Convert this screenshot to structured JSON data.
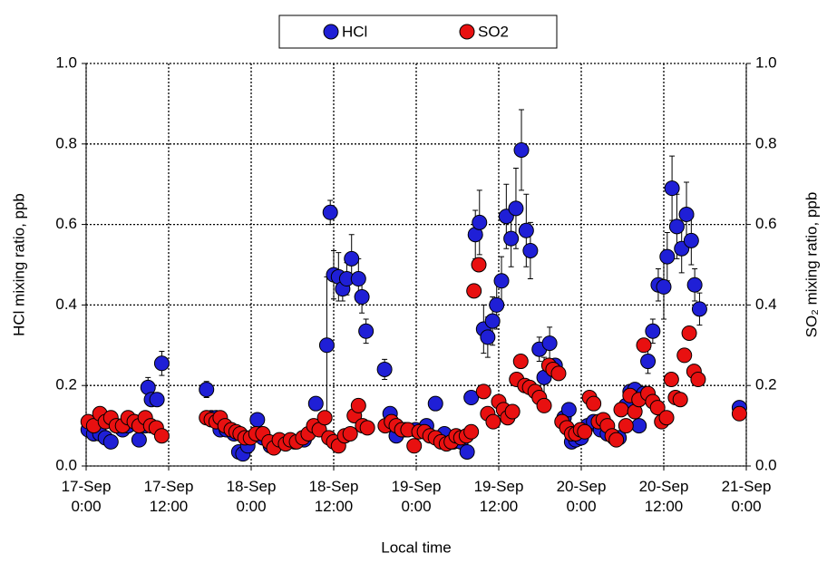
{
  "chart_data": {
    "type": "scatter",
    "xlabel": "Local time",
    "ylabel": "HCl mixing ratio,  ppb",
    "y2label": "SO₂ mixing ratio,  ppb",
    "xlim": [
      0,
      96
    ],
    "xticks": [
      {
        "value": 0,
        "label": "17-Sep\n0:00"
      },
      {
        "value": 12,
        "label": "17-Sep\n12:00"
      },
      {
        "value": 24,
        "label": "18-Sep\n0:00"
      },
      {
        "value": 36,
        "label": "18-Sep\n12:00"
      },
      {
        "value": 48,
        "label": "19-Sep\n0:00"
      },
      {
        "value": 60,
        "label": "19-Sep\n12:00"
      },
      {
        "value": 72,
        "label": "20-Sep\n0:00"
      },
      {
        "value": 84,
        "label": "20-Sep\n12:00"
      },
      {
        "value": 96,
        "label": "21-Sep\n0:00"
      }
    ],
    "ylim": [
      0,
      1
    ],
    "yticks": [
      {
        "value": 0,
        "label": "0.0"
      },
      {
        "value": 0.2,
        "label": "0.2"
      },
      {
        "value": 0.4,
        "label": "0.4"
      },
      {
        "value": 0.6,
        "label": "0.6"
      },
      {
        "value": 0.8,
        "label": "0.8"
      },
      {
        "value": 1,
        "label": "1.0"
      }
    ],
    "y2lim": [
      0,
      1
    ],
    "y2ticks": [
      {
        "value": 0,
        "label": "0.0"
      },
      {
        "value": 0.2,
        "label": "0.2"
      },
      {
        "value": 0.4,
        "label": "0.4"
      },
      {
        "value": 0.6,
        "label": "0.6"
      },
      {
        "value": 0.8,
        "label": "0.8"
      },
      {
        "value": 1,
        "label": "1.0"
      }
    ],
    "grid": true,
    "legend": "top",
    "series": [
      {
        "name": "HCl",
        "color": "#1f1fd6",
        "x": [
          0.3,
          1.1,
          2.0,
          2.8,
          3.6,
          4.4,
          5.3,
          6.1,
          7.0,
          7.7,
          8.6,
          9.0,
          9.5,
          10.3,
          11.0,
          17.5,
          18.2,
          18.9,
          19.5,
          20.4,
          21.5,
          22.2,
          22.8,
          23.5,
          24.9,
          25.7,
          26.8,
          27.7,
          29.0,
          30.3,
          31.7,
          33.4,
          35.0,
          35.5,
          36.0,
          36.7,
          37.3,
          37.9,
          38.6,
          39.6,
          40.1,
          40.7,
          43.4,
          44.2,
          45.1,
          46.4,
          47.9,
          49.5,
          50.8,
          52.1,
          53.4,
          54.5,
          55.4,
          56.0,
          56.6,
          57.2,
          57.8,
          58.4,
          59.1,
          59.7,
          60.4,
          61.1,
          61.8,
          62.5,
          63.3,
          64.0,
          64.6,
          65.9,
          66.6,
          67.4,
          68.2,
          69.5,
          70.2,
          70.6,
          71.2,
          72.0,
          72.9,
          73.8,
          74.8,
          75.8,
          76.8,
          77.5,
          78.5,
          79.1,
          79.8,
          80.4,
          81.1,
          81.7,
          82.4,
          83.2,
          84.0,
          84.5,
          85.2,
          85.9,
          86.6,
          87.3,
          88.0,
          88.5,
          89.2,
          95.0
        ],
        "values": [
          0.09,
          0.08,
          0.08,
          0.07,
          0.06,
          0.1,
          0.09,
          0.1,
          0.11,
          0.065,
          0.1,
          0.195,
          0.165,
          0.165,
          0.255,
          0.19,
          0.12,
          0.12,
          0.09,
          0.09,
          0.08,
          0.035,
          0.03,
          0.05,
          0.115,
          0.07,
          0.05,
          0.06,
          0.06,
          0.06,
          0.065,
          0.155,
          0.3,
          0.63,
          0.475,
          0.47,
          0.44,
          0.465,
          0.515,
          0.465,
          0.42,
          0.335,
          0.24,
          0.13,
          0.075,
          0.09,
          0.09,
          0.1,
          0.155,
          0.08,
          0.06,
          0.06,
          0.035,
          0.17,
          0.575,
          0.605,
          0.34,
          0.32,
          0.36,
          0.4,
          0.46,
          0.62,
          0.565,
          0.64,
          0.785,
          0.585,
          0.535,
          0.29,
          0.22,
          0.305,
          0.25,
          0.12,
          0.14,
          0.06,
          0.065,
          0.07,
          0.1,
          0.11,
          0.09,
          0.08,
          0.07,
          0.07,
          0.15,
          0.185,
          0.19,
          0.1,
          0.18,
          0.26,
          0.335,
          0.45,
          0.445,
          0.52,
          0.69,
          0.595,
          0.54,
          0.625,
          0.56,
          0.45,
          0.39,
          0.145
        ],
        "errors": [
          0.015,
          0.015,
          0.015,
          0.015,
          0.015,
          0.015,
          0.015,
          0.015,
          0.015,
          0.015,
          0.015,
          0.025,
          0.015,
          0.015,
          0.03,
          0.02,
          0.015,
          0.015,
          0.015,
          0.015,
          0.015,
          0.015,
          0.015,
          0.015,
          0.015,
          0.015,
          0.015,
          0.015,
          0.015,
          0.015,
          0.015,
          0.015,
          0.17,
          0.03,
          0.06,
          0.06,
          0.03,
          0.04,
          0.06,
          0.05,
          0.04,
          0.03,
          0.025,
          0.015,
          0.015,
          0.015,
          0.015,
          0.015,
          0.015,
          0.015,
          0.015,
          0.015,
          0.015,
          0.015,
          0.06,
          0.08,
          0.06,
          0.05,
          0.06,
          0.06,
          0.06,
          0.08,
          0.07,
          0.1,
          0.1,
          0.09,
          0.07,
          0.03,
          0.05,
          0.04,
          0.015,
          0.015,
          0.015,
          0.015,
          0.015,
          0.015,
          0.015,
          0.015,
          0.015,
          0.015,
          0.015,
          0.015,
          0.015,
          0.015,
          0.015,
          0.015,
          0.015,
          0.03,
          0.03,
          0.04,
          0.08,
          0.06,
          0.08,
          0.08,
          0.06,
          0.08,
          0.06,
          0.04,
          0.04,
          0.015
        ]
      },
      {
        "name": "SO2",
        "color": "#e81010",
        "axis": "y2",
        "x": [
          0.3,
          1.1,
          2.0,
          2.8,
          3.6,
          4.4,
          5.3,
          6.1,
          7.0,
          7.7,
          8.6,
          9.4,
          10.2,
          11.0,
          17.5,
          18.2,
          18.9,
          19.5,
          20.2,
          21.1,
          21.8,
          22.4,
          23.1,
          23.9,
          24.7,
          25.7,
          26.6,
          27.3,
          28.1,
          29.0,
          29.7,
          30.6,
          31.5,
          32.3,
          33.1,
          33.9,
          34.7,
          35.3,
          36.0,
          36.7,
          37.6,
          38.4,
          39.0,
          39.6,
          40.2,
          40.9,
          43.5,
          44.4,
          45.1,
          45.9,
          46.8,
          47.7,
          48.4,
          49.2,
          50.0,
          50.8,
          51.6,
          52.4,
          53.1,
          53.8,
          54.5,
          55.3,
          56.0,
          56.4,
          57.1,
          57.8,
          58.4,
          59.2,
          60.0,
          60.7,
          61.3,
          62.0,
          62.6,
          63.2,
          63.8,
          64.5,
          65.3,
          65.9,
          66.6,
          67.3,
          67.9,
          68.7,
          69.2,
          69.9,
          70.6,
          71.2,
          71.9,
          72.5,
          73.2,
          73.8,
          74.5,
          75.2,
          75.8,
          76.5,
          77.1,
          77.8,
          78.5,
          79.1,
          79.8,
          80.4,
          81.1,
          81.7,
          82.4,
          83.1,
          83.7,
          84.4,
          85.1,
          85.7,
          86.4,
          87.0,
          87.7,
          88.4,
          89.0,
          95.0
        ],
        "values": [
          0.11,
          0.1,
          0.13,
          0.11,
          0.12,
          0.1,
          0.1,
          0.12,
          0.11,
          0.1,
          0.12,
          0.1,
          0.095,
          0.075,
          0.12,
          0.115,
          0.11,
          0.12,
          0.1,
          0.09,
          0.085,
          0.08,
          0.07,
          0.07,
          0.08,
          0.08,
          0.06,
          0.045,
          0.065,
          0.055,
          0.065,
          0.06,
          0.07,
          0.08,
          0.1,
          0.09,
          0.12,
          0.07,
          0.06,
          0.05,
          0.075,
          0.08,
          0.125,
          0.15,
          0.1,
          0.095,
          0.1,
          0.11,
          0.1,
          0.09,
          0.09,
          0.05,
          0.085,
          0.085,
          0.075,
          0.07,
          0.06,
          0.055,
          0.06,
          0.075,
          0.07,
          0.075,
          0.085,
          0.435,
          0.5,
          0.185,
          0.13,
          0.11,
          0.16,
          0.14,
          0.12,
          0.135,
          0.215,
          0.26,
          0.2,
          0.195,
          0.185,
          0.17,
          0.15,
          0.25,
          0.24,
          0.23,
          0.11,
          0.095,
          0.08,
          0.08,
          0.09,
          0.085,
          0.17,
          0.155,
          0.11,
          0.115,
          0.1,
          0.075,
          0.065,
          0.14,
          0.1,
          0.175,
          0.135,
          0.165,
          0.3,
          0.18,
          0.16,
          0.145,
          0.11,
          0.12,
          0.215,
          0.17,
          0.165,
          0.275,
          0.33,
          0.235,
          0.215,
          0.13
        ]
      }
    ]
  }
}
